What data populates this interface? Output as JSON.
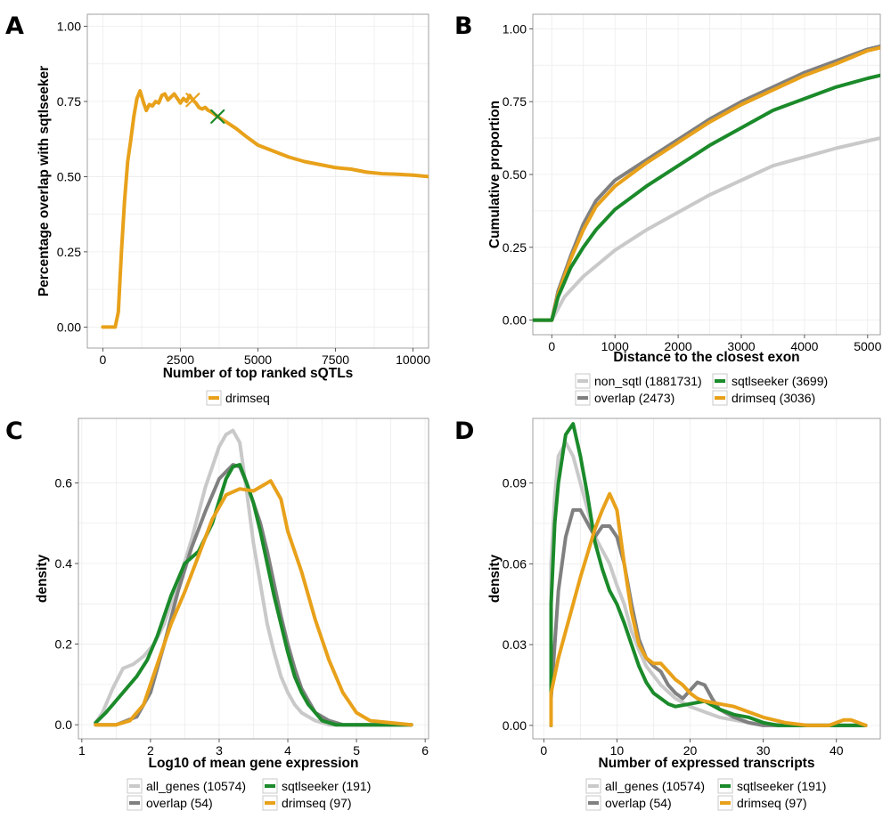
{
  "colors": {
    "drimseq": "#e8a11a",
    "sqtlseeker": "#1b8a2a",
    "overlap": "#808080",
    "non_sqtl": "#c9c9c9",
    "all_genes": "#c9c9c9"
  },
  "chart_data": [
    {
      "panel": "A",
      "type": "line",
      "xlabel": "Number of top ranked sQTLs",
      "ylabel": "Percentage overlap with sqtlseeker",
      "xlim": [
        -500,
        10500
      ],
      "ylim": [
        -0.07,
        1.04
      ],
      "xticks": [
        0,
        2500,
        5000,
        7500,
        10000
      ],
      "xtick_labels": [
        "0",
        "2500",
        "5000",
        "7500",
        "10000"
      ],
      "yticks": [
        0,
        0.25,
        0.5,
        0.75,
        1
      ],
      "ytick_labels": [
        "0.00",
        "0.25",
        "0.50",
        "0.75",
        "1.00"
      ],
      "grid": true,
      "legend": [
        {
          "name": "drimseq",
          "color_key": "drimseq"
        }
      ],
      "legend_position": "bottom",
      "series": [
        {
          "name": "drimseq",
          "color_key": "drimseq",
          "x": [
            0,
            200,
            400,
            500,
            600,
            700,
            800,
            900,
            1000,
            1100,
            1200,
            1300,
            1400,
            1500,
            1600,
            1700,
            1800,
            1900,
            2000,
            2100,
            2200,
            2300,
            2400,
            2500,
            2600,
            2700,
            2800,
            2900,
            3000,
            3100,
            3200,
            3300,
            3400,
            3500,
            3700,
            4000,
            4300,
            4600,
            5000,
            5500,
            6000,
            6500,
            7000,
            7500,
            8000,
            8500,
            9000,
            9500,
            10000,
            10500
          ],
          "y": [
            0,
            0,
            0,
            0.05,
            0.25,
            0.42,
            0.55,
            0.62,
            0.7,
            0.76,
            0.785,
            0.75,
            0.72,
            0.74,
            0.735,
            0.75,
            0.745,
            0.77,
            0.775,
            0.755,
            0.765,
            0.775,
            0.76,
            0.745,
            0.76,
            0.75,
            0.77,
            0.755,
            0.745,
            0.73,
            0.725,
            0.73,
            0.72,
            0.715,
            0.7,
            0.68,
            0.66,
            0.635,
            0.605,
            0.585,
            0.565,
            0.55,
            0.54,
            0.53,
            0.525,
            0.515,
            0.51,
            0.508,
            0.505,
            0.5
          ]
        }
      ],
      "markers": [
        {
          "x": 2900,
          "y": 0.755,
          "symbol": "x",
          "color_key": "drimseq"
        },
        {
          "x": 3700,
          "y": 0.7,
          "symbol": "x",
          "color_key": "sqtlseeker"
        }
      ]
    },
    {
      "panel": "B",
      "type": "line",
      "xlabel": "Distance to the closest exon",
      "ylabel": "Cumulative proportion",
      "xlim": [
        -300,
        5200
      ],
      "ylim": [
        -0.05,
        1.05
      ],
      "xticks": [
        0,
        1000,
        2000,
        3000,
        4000,
        5000
      ],
      "xtick_labels": [
        "0",
        "1000",
        "2000",
        "3000",
        "4000",
        "5000"
      ],
      "yticks": [
        0,
        0.25,
        0.5,
        0.75,
        1
      ],
      "ytick_labels": [
        "0.00",
        "0.25",
        "0.50",
        "0.75",
        "1.00"
      ],
      "grid": true,
      "legend": [
        {
          "name": "non_sqtl (1881731)",
          "color_key": "non_sqtl"
        },
        {
          "name": "sqtlseeker (3699)",
          "color_key": "sqtlseeker"
        },
        {
          "name": "overlap (2473)",
          "color_key": "overlap"
        },
        {
          "name": "drimseq (3036)",
          "color_key": "drimseq"
        }
      ],
      "legend_position": "bottom",
      "series": [
        {
          "name": "non_sqtl",
          "color_key": "non_sqtl",
          "x": [
            -300,
            0,
            200,
            500,
            1000,
            1500,
            2000,
            2500,
            3000,
            3500,
            4000,
            4500,
            5200
          ],
          "y": [
            0,
            0,
            0.08,
            0.15,
            0.24,
            0.31,
            0.37,
            0.43,
            0.48,
            0.53,
            0.56,
            0.59,
            0.625
          ]
        },
        {
          "name": "overlap",
          "color_key": "overlap",
          "x": [
            -300,
            0,
            100,
            300,
            500,
            700,
            1000,
            1500,
            2000,
            2500,
            3000,
            3500,
            4000,
            4500,
            5000,
            5200
          ],
          "y": [
            0,
            0,
            0.1,
            0.22,
            0.33,
            0.41,
            0.48,
            0.55,
            0.62,
            0.69,
            0.75,
            0.8,
            0.85,
            0.89,
            0.93,
            0.94
          ]
        },
        {
          "name": "drimseq",
          "color_key": "drimseq",
          "x": [
            -300,
            0,
            100,
            300,
            500,
            700,
            1000,
            1500,
            2000,
            2500,
            3000,
            3500,
            4000,
            4500,
            5000,
            5200
          ],
          "y": [
            0,
            0,
            0.09,
            0.21,
            0.31,
            0.39,
            0.46,
            0.54,
            0.61,
            0.68,
            0.74,
            0.79,
            0.84,
            0.88,
            0.925,
            0.935
          ]
        },
        {
          "name": "sqtlseeker",
          "color_key": "sqtlseeker",
          "x": [
            -300,
            0,
            100,
            300,
            500,
            700,
            1000,
            1500,
            2000,
            2500,
            3000,
            3500,
            4000,
            4500,
            5000,
            5200
          ],
          "y": [
            0,
            0,
            0.08,
            0.18,
            0.25,
            0.31,
            0.38,
            0.46,
            0.53,
            0.6,
            0.66,
            0.72,
            0.76,
            0.8,
            0.83,
            0.84
          ]
        }
      ]
    },
    {
      "panel": "C",
      "type": "line",
      "xlabel": "Log10 of mean gene expression",
      "ylabel": "density",
      "xlim": [
        0.95,
        6.05
      ],
      "ylim": [
        -0.035,
        0.76
      ],
      "xticks": [
        1,
        2,
        3,
        4,
        5,
        6
      ],
      "xtick_labels": [
        "1",
        "2",
        "3",
        "4",
        "5",
        "6"
      ],
      "yticks": [
        0,
        0.2,
        0.4,
        0.6
      ],
      "ytick_labels": [
        "0.0",
        "0.2",
        "0.4",
        "0.6"
      ],
      "grid": true,
      "legend": [
        {
          "name": "all_genes (10574)",
          "color_key": "all_genes"
        },
        {
          "name": "sqtlseeker (191)",
          "color_key": "sqtlseeker"
        },
        {
          "name": "overlap (54)",
          "color_key": "overlap"
        },
        {
          "name": "drimseq (97)",
          "color_key": "drimseq"
        }
      ],
      "legend_position": "bottom",
      "series": [
        {
          "name": "all_genes",
          "color_key": "all_genes",
          "x": [
            1.2,
            1.3,
            1.45,
            1.6,
            1.75,
            1.9,
            2.05,
            2.2,
            2.4,
            2.6,
            2.8,
            3.0,
            3.1,
            3.2,
            3.3,
            3.4,
            3.5,
            3.6,
            3.7,
            3.8,
            3.9,
            4.0,
            4.1,
            4.2,
            4.3,
            4.4,
            4.6,
            5.8
          ],
          "y": [
            0.005,
            0.03,
            0.09,
            0.14,
            0.15,
            0.17,
            0.2,
            0.25,
            0.35,
            0.46,
            0.59,
            0.69,
            0.72,
            0.73,
            0.7,
            0.58,
            0.45,
            0.35,
            0.25,
            0.18,
            0.12,
            0.08,
            0.05,
            0.03,
            0.02,
            0.01,
            0.0,
            0.0
          ]
        },
        {
          "name": "overlap",
          "color_key": "overlap",
          "x": [
            1.2,
            1.5,
            1.8,
            2.0,
            2.2,
            2.4,
            2.6,
            2.8,
            3.0,
            3.2,
            3.3,
            3.4,
            3.5,
            3.6,
            3.7,
            3.8,
            3.9,
            4.0,
            4.1,
            4.2,
            4.3,
            4.4,
            4.6,
            4.8,
            5.8
          ],
          "y": [
            0.0,
            0.0,
            0.02,
            0.08,
            0.2,
            0.33,
            0.44,
            0.53,
            0.61,
            0.645,
            0.64,
            0.6,
            0.55,
            0.5,
            0.43,
            0.35,
            0.27,
            0.2,
            0.14,
            0.09,
            0.06,
            0.03,
            0.01,
            0.0,
            0.0
          ]
        },
        {
          "name": "sqtlseeker",
          "color_key": "sqtlseeker",
          "x": [
            1.2,
            1.35,
            1.5,
            1.65,
            1.8,
            1.95,
            2.1,
            2.3,
            2.5,
            2.7,
            2.9,
            3.1,
            3.2,
            3.3,
            3.4,
            3.5,
            3.6,
            3.7,
            3.8,
            3.9,
            4.0,
            4.1,
            4.2,
            4.3,
            4.4,
            4.5,
            4.7,
            5.8
          ],
          "y": [
            0.005,
            0.03,
            0.06,
            0.09,
            0.12,
            0.16,
            0.22,
            0.32,
            0.4,
            0.43,
            0.5,
            0.61,
            0.64,
            0.645,
            0.6,
            0.55,
            0.48,
            0.4,
            0.32,
            0.25,
            0.18,
            0.12,
            0.08,
            0.05,
            0.03,
            0.01,
            0.0,
            0.0
          ]
        },
        {
          "name": "drimseq",
          "color_key": "drimseq",
          "x": [
            1.2,
            1.5,
            1.7,
            1.9,
            2.1,
            2.3,
            2.5,
            2.7,
            2.9,
            3.1,
            3.3,
            3.5,
            3.6,
            3.75,
            3.9,
            4.0,
            4.2,
            4.4,
            4.6,
            4.8,
            5.0,
            5.2,
            5.8
          ],
          "y": [
            0.0,
            0.0,
            0.01,
            0.05,
            0.15,
            0.25,
            0.33,
            0.42,
            0.51,
            0.57,
            0.585,
            0.58,
            0.59,
            0.605,
            0.56,
            0.48,
            0.38,
            0.26,
            0.16,
            0.08,
            0.03,
            0.01,
            0.0
          ]
        }
      ]
    },
    {
      "panel": "D",
      "type": "line",
      "xlabel": "Number of expressed transcripts",
      "ylabel": "density",
      "xlim": [
        -1.5,
        46
      ],
      "ylim": [
        -0.005,
        0.114
      ],
      "xticks": [
        0,
        10,
        20,
        30,
        40
      ],
      "xtick_labels": [
        "0",
        "10",
        "20",
        "30",
        "40"
      ],
      "yticks": [
        0,
        0.03,
        0.06,
        0.09
      ],
      "ytick_labels": [
        "0.00",
        "0.03",
        "0.06",
        "0.09"
      ],
      "grid": true,
      "legend": [
        {
          "name": "all_genes (10574)",
          "color_key": "all_genes"
        },
        {
          "name": "sqtlseeker (191)",
          "color_key": "sqtlseeker"
        },
        {
          "name": "overlap (54)",
          "color_key": "overlap"
        },
        {
          "name": "drimseq (97)",
          "color_key": "drimseq"
        }
      ],
      "legend_position": "bottom",
      "series": [
        {
          "name": "all_genes",
          "color_key": "all_genes",
          "x": [
            1,
            1,
            1.5,
            2,
            3,
            4,
            5,
            6,
            7,
            8,
            9,
            10,
            11,
            12,
            13,
            14,
            16,
            18,
            20,
            22,
            24,
            26,
            28,
            30,
            35,
            44
          ],
          "y": [
            0,
            0.06,
            0.085,
            0.1,
            0.105,
            0.1,
            0.09,
            0.08,
            0.07,
            0.065,
            0.06,
            0.052,
            0.045,
            0.035,
            0.028,
            0.022,
            0.015,
            0.01,
            0.007,
            0.005,
            0.003,
            0.002,
            0.001,
            0.0005,
            0.0,
            0.0
          ]
        },
        {
          "name": "overlap",
          "color_key": "overlap",
          "x": [
            1,
            1,
            1.5,
            2,
            3,
            4,
            5,
            6,
            7,
            8,
            9,
            10,
            11,
            12,
            13,
            14,
            15,
            16,
            17,
            18,
            19,
            20,
            21,
            22,
            23,
            24,
            26,
            28,
            30,
            44
          ],
          "y": [
            0,
            0.01,
            0.03,
            0.05,
            0.07,
            0.08,
            0.08,
            0.075,
            0.07,
            0.074,
            0.074,
            0.07,
            0.06,
            0.045,
            0.032,
            0.025,
            0.022,
            0.02,
            0.015,
            0.012,
            0.01,
            0.013,
            0.016,
            0.015,
            0.01,
            0.006,
            0.003,
            0.001,
            0.0,
            0.0
          ]
        },
        {
          "name": "sqtlseeker",
          "color_key": "sqtlseeker",
          "x": [
            1,
            1,
            1.5,
            2,
            3,
            4,
            5,
            6,
            7,
            8,
            9,
            10,
            11,
            12,
            13,
            14,
            15,
            16,
            17,
            18,
            20,
            22,
            24,
            26,
            28,
            30,
            32,
            44
          ],
          "y": [
            0,
            0.045,
            0.075,
            0.09,
            0.108,
            0.112,
            0.1,
            0.085,
            0.068,
            0.058,
            0.05,
            0.045,
            0.038,
            0.03,
            0.022,
            0.016,
            0.012,
            0.01,
            0.008,
            0.007,
            0.008,
            0.009,
            0.006,
            0.004,
            0.003,
            0.001,
            0.0,
            0.0
          ]
        },
        {
          "name": "drimseq",
          "color_key": "drimseq",
          "x": [
            1,
            1,
            2,
            3,
            4,
            5,
            6,
            7,
            8,
            9,
            10,
            11,
            12,
            13,
            14,
            15,
            16,
            17,
            18,
            19,
            20,
            21,
            22,
            24,
            26,
            28,
            30,
            33,
            36,
            39,
            41,
            42,
            43,
            44
          ],
          "y": [
            0,
            0.012,
            0.025,
            0.035,
            0.045,
            0.055,
            0.064,
            0.073,
            0.08,
            0.086,
            0.08,
            0.06,
            0.042,
            0.03,
            0.025,
            0.023,
            0.023,
            0.02,
            0.017,
            0.015,
            0.012,
            0.01,
            0.009,
            0.008,
            0.007,
            0.005,
            0.003,
            0.001,
            0.0,
            0.0,
            0.002,
            0.002,
            0.001,
            0.0
          ]
        }
      ]
    }
  ]
}
